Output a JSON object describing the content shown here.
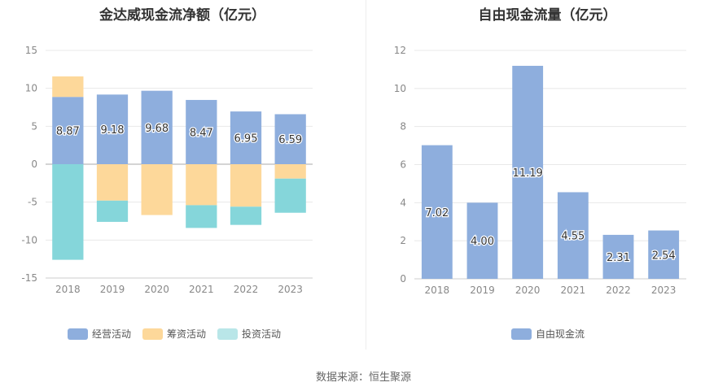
{
  "colors": {
    "operating": "#8eaedd",
    "financing": "#fdd89a",
    "investing": "#85d6da",
    "free_cash_flow": "#8eaedd",
    "axis": "#888888",
    "grid": "#e8e8e8",
    "label_text": "#333333"
  },
  "chart_data": [
    {
      "type": "bar",
      "stacked": true,
      "title": "金达威现金流净额（亿元）",
      "categories": [
        "2018",
        "2019",
        "2020",
        "2021",
        "2022",
        "2023"
      ],
      "ylim": [
        -15,
        15
      ],
      "yticks": [
        15,
        10,
        5,
        0,
        -5,
        -10,
        -15
      ],
      "grid": true,
      "legend_position": "bottom",
      "series": [
        {
          "name": "经营活动",
          "color_key": "operating",
          "values": [
            8.87,
            9.18,
            9.68,
            8.47,
            6.95,
            6.59
          ],
          "labels": [
            "8.87",
            "9.18",
            "9.68",
            "8.47",
            "6.95",
            "6.59"
          ]
        },
        {
          "name": "筹资活动",
          "color_key": "financing",
          "values": [
            2.7,
            -4.8,
            -6.7,
            -5.4,
            -5.6,
            -1.9
          ]
        },
        {
          "name": "投资活动",
          "color_key": "investing",
          "values": [
            -12.6,
            -2.8,
            0,
            -3.0,
            -2.4,
            -4.5
          ]
        }
      ]
    },
    {
      "type": "bar",
      "title": "自由现金流量（亿元）",
      "categories": [
        "2018",
        "2019",
        "2020",
        "2021",
        "2022",
        "2023"
      ],
      "ylim": [
        0,
        12
      ],
      "yticks": [
        12,
        10,
        8,
        6,
        4,
        2,
        0
      ],
      "grid": true,
      "legend_position": "bottom",
      "series": [
        {
          "name": "自由现金流",
          "color_key": "free_cash_flow",
          "values": [
            7.02,
            4.0,
            11.19,
            4.55,
            2.31,
            2.54
          ],
          "labels": [
            "7.02",
            "4.00",
            "11.19",
            "4.55",
            "2.31",
            "2.54"
          ]
        }
      ]
    }
  ],
  "footer": {
    "source": "数据来源：恒生聚源"
  }
}
